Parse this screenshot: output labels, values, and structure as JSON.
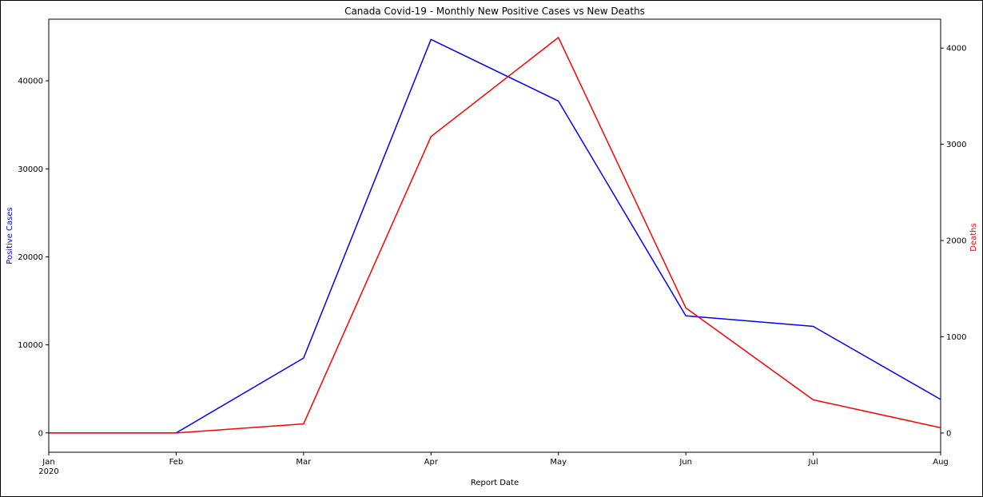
{
  "chart_data": {
    "type": "line",
    "title": "Canada Covid-19 - Monthly New Positive Cases vs New Deaths",
    "xlabel": "Report Date",
    "x": [
      "Jan",
      "Feb",
      "Mar",
      "Apr",
      "May",
      "Jun",
      "Jul",
      "Aug"
    ],
    "x_tick_labels": [
      "Jan",
      "Feb",
      "Mar",
      "Apr",
      "May",
      "Jun",
      "Jul",
      "Aug"
    ],
    "x_year_label": "2020",
    "ylabel_left": "Positive Cases",
    "ylabel_right": "Deaths",
    "ylim_left": [
      -2200,
      47000
    ],
    "ylim_right": [
      -200,
      4300
    ],
    "yticks_left": [
      0,
      10000,
      20000,
      30000,
      40000
    ],
    "yticks_right": [
      0,
      1000,
      2000,
      3000,
      4000
    ],
    "grid": false,
    "series": [
      {
        "name": "Positive Cases",
        "axis": "left",
        "color": "#0000ff",
        "values": [
          0,
          0,
          8500,
          44700,
          37700,
          13300,
          12100,
          3800
        ]
      },
      {
        "name": "Deaths",
        "axis": "right",
        "color": "#ff0000",
        "values": [
          0,
          0,
          95,
          3080,
          4110,
          1300,
          345,
          55
        ]
      }
    ]
  }
}
